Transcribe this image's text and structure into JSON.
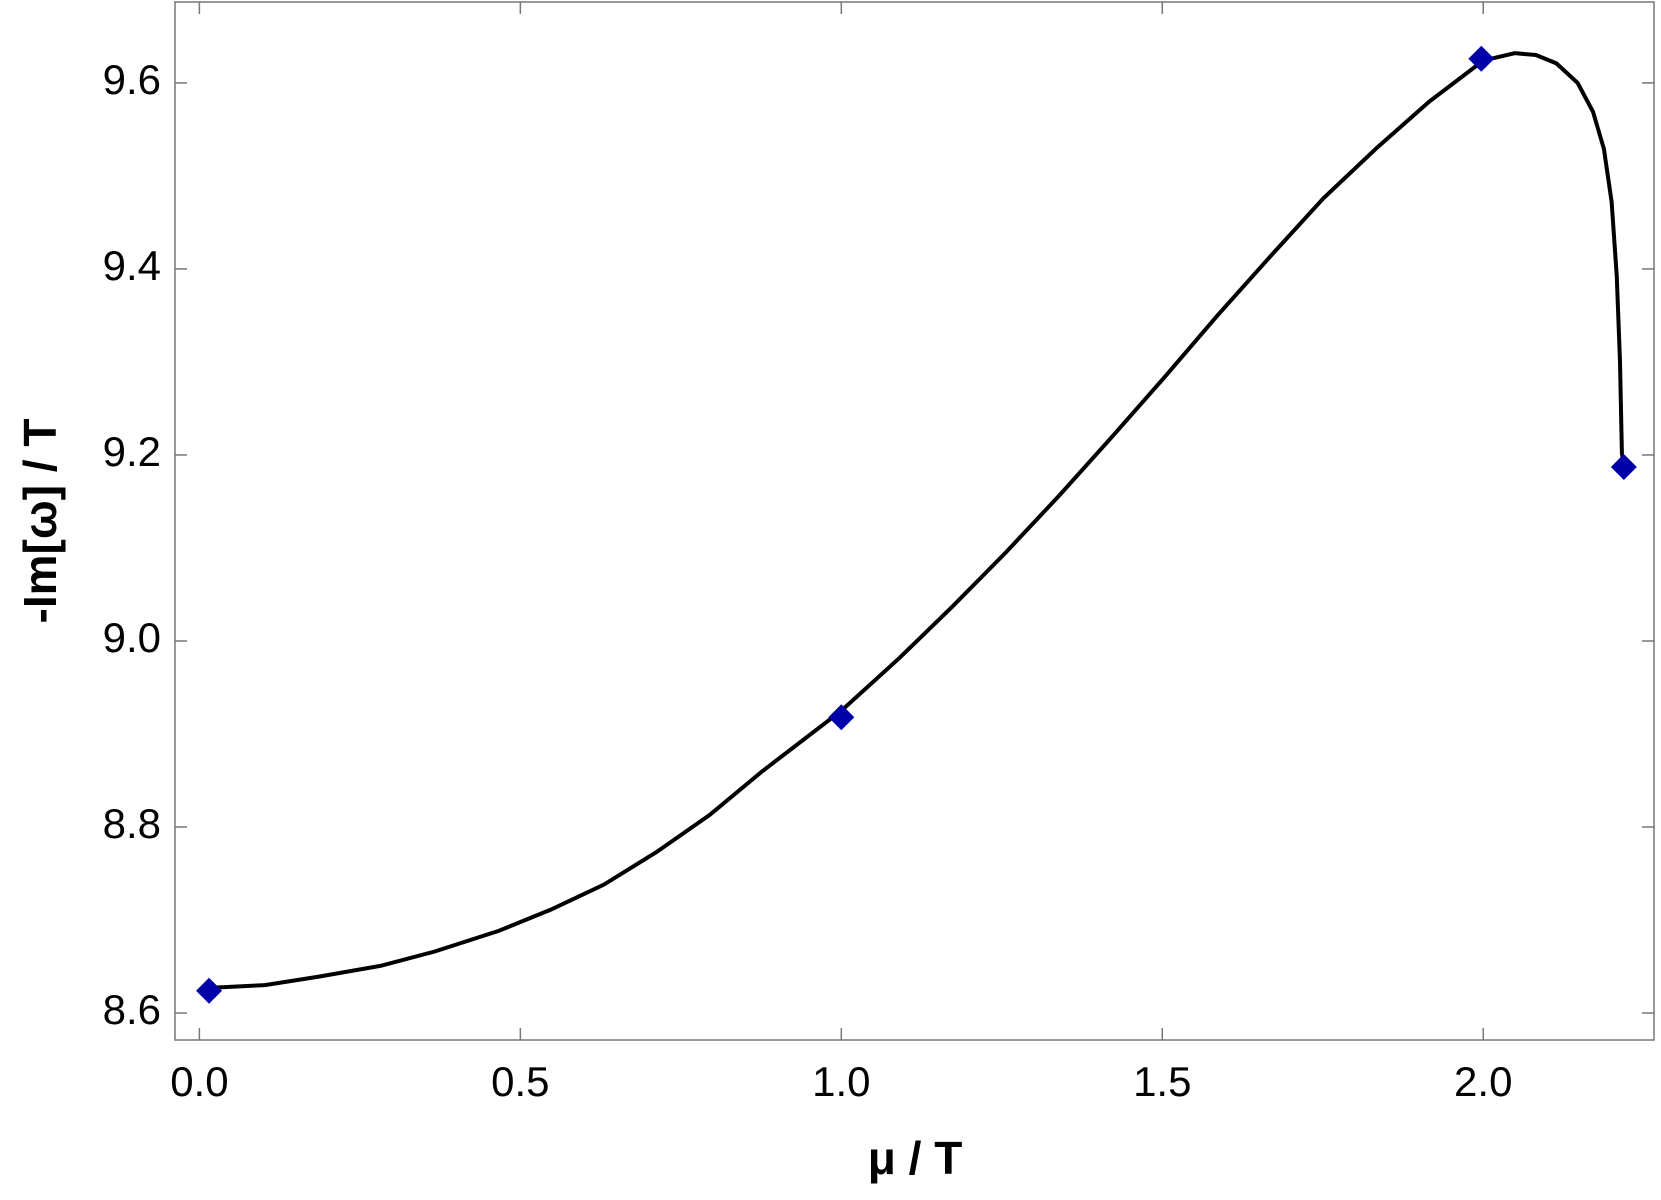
{
  "chart_data": {
    "type": "line",
    "x_label": "μ / T",
    "y_label": "-Im[ω] / T",
    "series": [
      {
        "name": "curve",
        "color": "#000000",
        "style": "line",
        "x": [
          0.015,
          0.102,
          0.185,
          0.284,
          0.366,
          0.465,
          0.547,
          0.63,
          0.712,
          0.795,
          0.877,
          1.0,
          1.091,
          1.173,
          1.256,
          1.339,
          1.421,
          1.504,
          1.586,
          1.669,
          1.751,
          1.834,
          1.916,
          2.0,
          2.049,
          2.082,
          2.114,
          2.147,
          2.171,
          2.188,
          2.2,
          2.208,
          2.213,
          2.216,
          2.219
        ],
        "values": [
          8.627,
          8.63,
          8.639,
          8.651,
          8.666,
          8.688,
          8.711,
          8.738,
          8.773,
          8.813,
          8.86,
          8.925,
          8.982,
          9.037,
          9.095,
          9.156,
          9.219,
          9.284,
          9.35,
          9.414,
          9.476,
          9.53,
          9.58,
          9.624,
          9.632,
          9.63,
          9.621,
          9.6,
          9.569,
          9.529,
          9.472,
          9.392,
          9.301,
          9.202,
          9.187
        ]
      },
      {
        "name": "points",
        "color": "#0000a8",
        "style": "diamond",
        "x": [
          0.015,
          1.0,
          1.997,
          2.219
        ],
        "values": [
          8.624,
          8.918,
          9.626,
          9.187
        ]
      }
    ],
    "xlim": [
      -0.038,
      2.266
    ],
    "ylim": [
      8.571,
      9.687
    ],
    "xticks": [
      {
        "value": 0,
        "label": "0.0"
      },
      0.5,
      {
        "value": 1,
        "label": "1.0"
      },
      1.5,
      {
        "value": 2,
        "label": "2.0"
      }
    ],
    "yticks": [
      8.6,
      8.8,
      {
        "value": 9,
        "label": "9.0"
      },
      9.2,
      9.4,
      9.6
    ],
    "grid": false
  }
}
